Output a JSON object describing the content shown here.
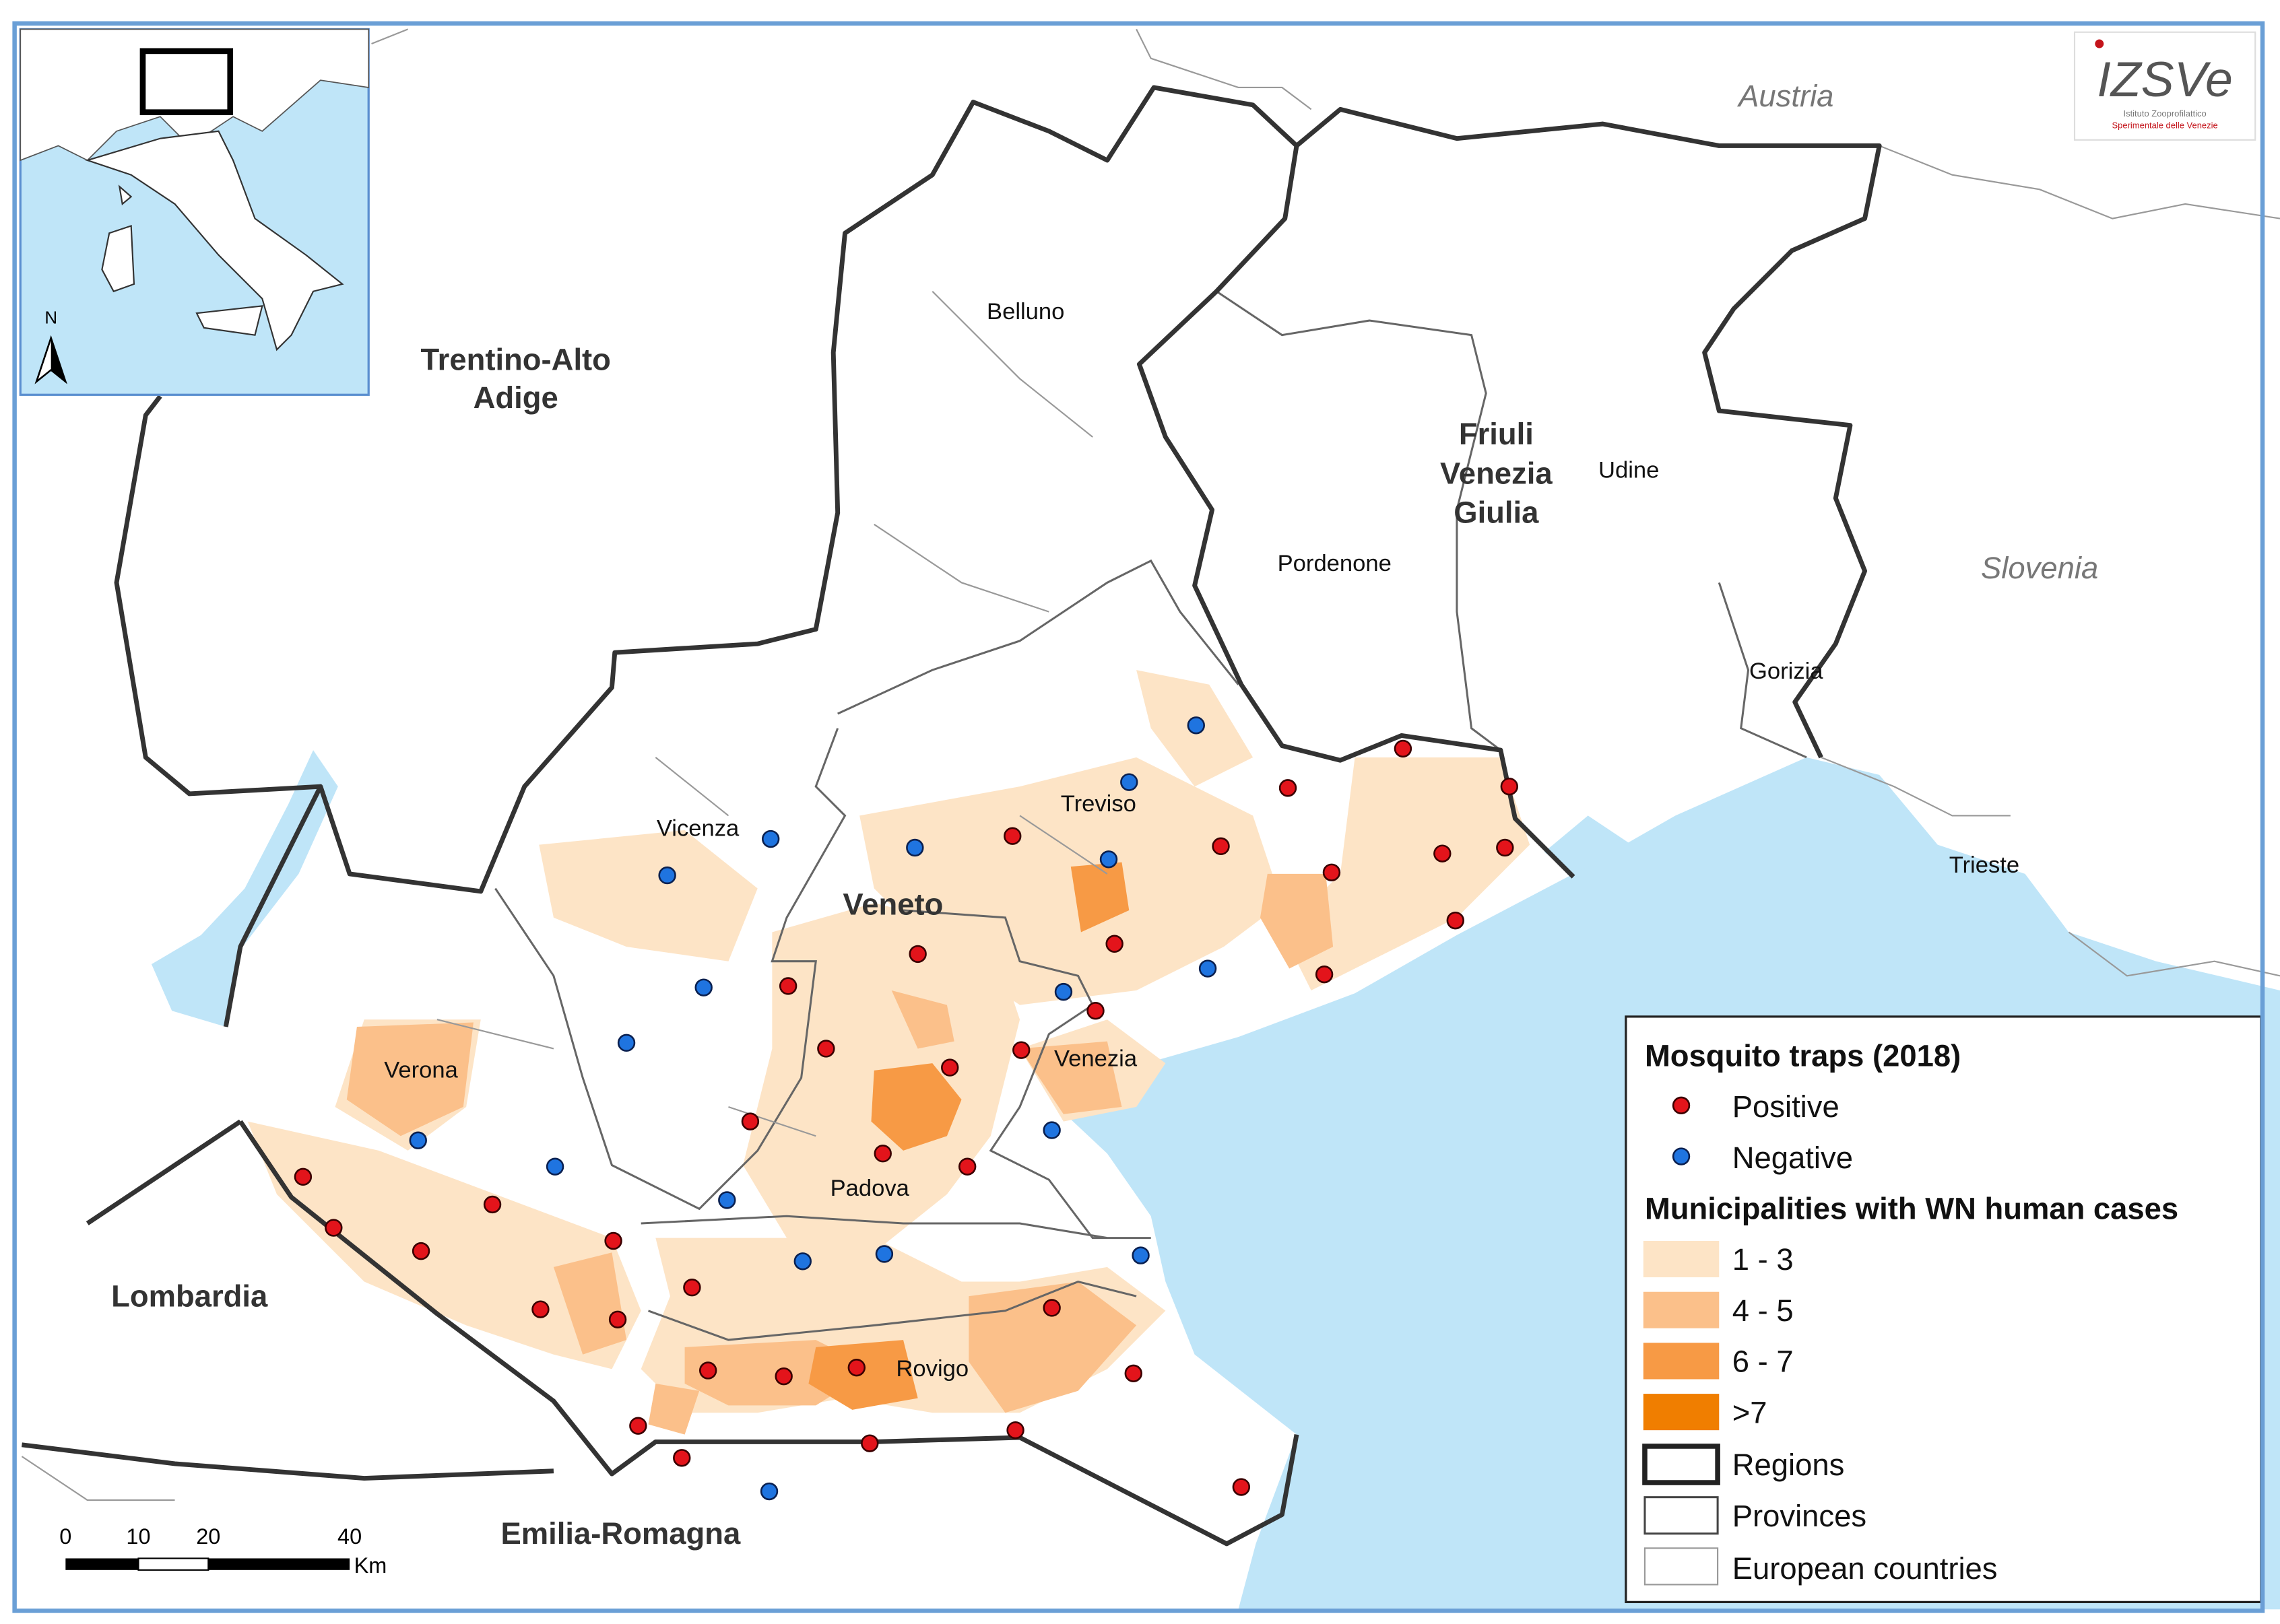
{
  "countries": [
    "Austria",
    "Slovenia"
  ],
  "regions": {
    "trentino": {
      "lines": [
        "Trentino-Alto",
        "Adige"
      ]
    },
    "friuli": {
      "lines": [
        "Friuli",
        "Venezia",
        "Giulia"
      ]
    },
    "veneto": "Veneto",
    "lombardia": "Lombardia",
    "emilia": "Emilia-Romagna"
  },
  "provinces": [
    "Belluno",
    "Vicenza",
    "Treviso",
    "Verona",
    "Venezia",
    "Padova",
    "Rovigo",
    "Pordenone",
    "Udine",
    "Gorizia",
    "Trieste"
  ],
  "legend": {
    "traps_title": "Mosquito traps (2018)",
    "positive": "Positive",
    "negative": "Negative",
    "cases_title": "Municipalities with WN human cases",
    "classes": [
      "1 - 3",
      "4 - 5",
      "6 - 7",
      ">7"
    ],
    "regions": "Regions",
    "provinces": "Provinces",
    "countries": "European countries"
  },
  "scale_bar": {
    "ticks": [
      0,
      10,
      20,
      40
    ],
    "unit": "Km"
  },
  "inset": {
    "north": "N"
  },
  "logo": {
    "name": "IZSVe",
    "line1": "Istituto Zooprofilattico",
    "line2": "Sperimentale delle Venezie"
  }
}
